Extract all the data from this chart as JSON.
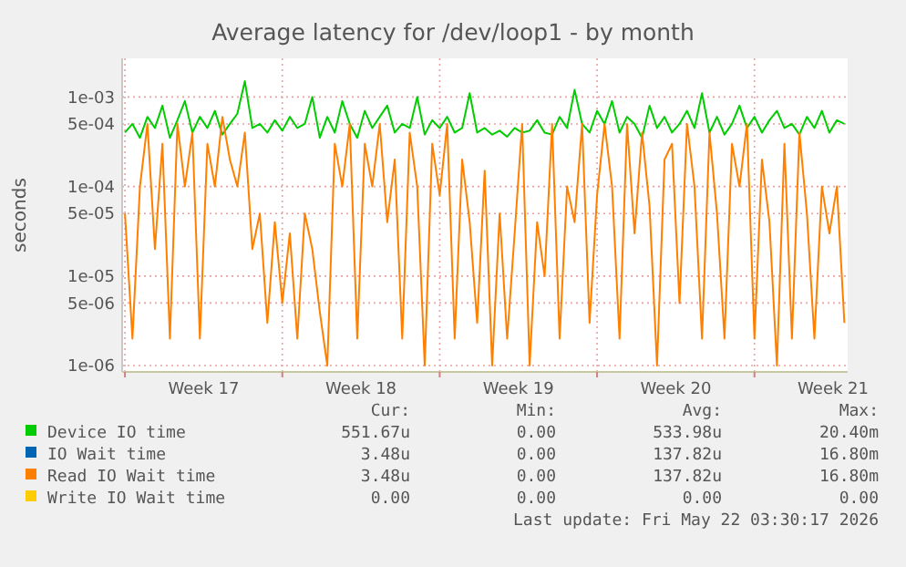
{
  "chart_data": {
    "type": "line",
    "title": "Average latency for /dev/loop1 - by month",
    "ylabel": "seconds",
    "log": "y",
    "grid": true,
    "legend": "bottom",
    "line_style": "solid",
    "xlim": [
      "2026-04-19T21:00",
      "2026-05-22T03:30"
    ],
    "xticks": [
      {
        "value": "2026-04-20T00:00",
        "label": null
      },
      {
        "value": "2026-04-23T12:00",
        "label": "Week 17"
      },
      {
        "value": "2026-04-27T00:00",
        "label": null
      },
      {
        "value": "2026-04-30T12:00",
        "label": "Week 18"
      },
      {
        "value": "2026-05-04T00:00",
        "label": null
      },
      {
        "value": "2026-05-07T12:00",
        "label": "Week 19"
      },
      {
        "value": "2026-05-11T00:00",
        "label": null
      },
      {
        "value": "2026-05-14T12:00",
        "label": "Week 20"
      },
      {
        "value": "2026-05-18T00:00",
        "label": null
      },
      {
        "value": "2026-05-21T12:00",
        "label": "Week 21"
      }
    ],
    "ylim": [
      8.5e-07,
      0.0027
    ],
    "yticks": [
      {
        "value": 1e-06,
        "label": "1e-06"
      },
      {
        "value": 5e-06,
        "label": "5e-06"
      },
      {
        "value": 1e-05,
        "label": "1e-05"
      },
      {
        "value": 5e-05,
        "label": "5e-05"
      },
      {
        "value": 0.0001,
        "label": "1e-04"
      },
      {
        "value": 0.0005,
        "label": "5e-04"
      },
      {
        "value": 0.001,
        "label": "1e-03"
      }
    ],
    "x": [
      "2026-04-20T00:00",
      "2026-04-20T08:00",
      "2026-04-20T16:00",
      "2026-04-21T00:00",
      "2026-04-21T08:00",
      "2026-04-21T16:00",
      "2026-04-22T00:00",
      "2026-04-22T08:00",
      "2026-04-22T16:00",
      "2026-04-23T00:00",
      "2026-04-23T08:00",
      "2026-04-23T16:00",
      "2026-04-24T00:00",
      "2026-04-24T08:00",
      "2026-04-24T16:00",
      "2026-04-25T00:00",
      "2026-04-25T08:00",
      "2026-04-25T16:00",
      "2026-04-26T00:00",
      "2026-04-26T08:00",
      "2026-04-26T16:00",
      "2026-04-27T00:00",
      "2026-04-27T08:00",
      "2026-04-27T16:00",
      "2026-04-28T00:00",
      "2026-04-28T08:00",
      "2026-04-28T16:00",
      "2026-04-29T00:00",
      "2026-04-29T08:00",
      "2026-04-29T16:00",
      "2026-04-30T00:00",
      "2026-04-30T08:00",
      "2026-04-30T16:00",
      "2026-05-01T00:00",
      "2026-05-01T08:00",
      "2026-05-01T16:00",
      "2026-05-02T00:00",
      "2026-05-02T08:00",
      "2026-05-02T16:00",
      "2026-05-03T00:00",
      "2026-05-03T08:00",
      "2026-05-03T16:00",
      "2026-05-04T00:00",
      "2026-05-04T08:00",
      "2026-05-04T16:00",
      "2026-05-05T00:00",
      "2026-05-05T08:00",
      "2026-05-05T16:00",
      "2026-05-06T00:00",
      "2026-05-06T08:00",
      "2026-05-06T16:00",
      "2026-05-07T00:00",
      "2026-05-07T08:00",
      "2026-05-07T16:00",
      "2026-05-08T00:00",
      "2026-05-08T08:00",
      "2026-05-08T16:00",
      "2026-05-09T00:00",
      "2026-05-09T08:00",
      "2026-05-09T16:00",
      "2026-05-10T00:00",
      "2026-05-10T08:00",
      "2026-05-10T16:00",
      "2026-05-11T00:00",
      "2026-05-11T08:00",
      "2026-05-11T16:00",
      "2026-05-12T00:00",
      "2026-05-12T08:00",
      "2026-05-12T16:00",
      "2026-05-13T00:00",
      "2026-05-13T08:00",
      "2026-05-13T16:00",
      "2026-05-14T00:00",
      "2026-05-14T08:00",
      "2026-05-14T16:00",
      "2026-05-15T00:00",
      "2026-05-15T08:00",
      "2026-05-15T16:00",
      "2026-05-16T00:00",
      "2026-05-16T08:00",
      "2026-05-16T16:00",
      "2026-05-17T00:00",
      "2026-05-17T08:00",
      "2026-05-17T16:00",
      "2026-05-18T00:00",
      "2026-05-18T08:00",
      "2026-05-18T16:00",
      "2026-05-19T00:00",
      "2026-05-19T08:00",
      "2026-05-19T16:00",
      "2026-05-20T00:00",
      "2026-05-20T08:00",
      "2026-05-20T16:00",
      "2026-05-21T00:00",
      "2026-05-21T08:00",
      "2026-05-21T16:00",
      "2026-05-22T00:00"
    ],
    "series": [
      {
        "name": "Device IO time",
        "color": "#00cc00",
        "values": [
          0.0004,
          0.0005,
          0.00035,
          0.0006,
          0.00045,
          0.0008,
          0.00035,
          0.00055,
          0.0009,
          0.0004,
          0.0006,
          0.00045,
          0.0007,
          0.00038,
          0.0005,
          0.00065,
          0.0015,
          0.00045,
          0.0005,
          0.0004,
          0.00055,
          0.00042,
          0.0006,
          0.00045,
          0.0005,
          0.001,
          0.00035,
          0.0006,
          0.0004,
          0.0009,
          0.0005,
          0.00035,
          0.0007,
          0.00045,
          0.0006,
          0.0008,
          0.0004,
          0.0005,
          0.00045,
          0.001,
          0.00038,
          0.00055,
          0.00045,
          0.0006,
          0.0004,
          0.00045,
          0.0011,
          0.0004,
          0.00045,
          0.00038,
          0.00042,
          0.00036,
          0.00045,
          0.0004,
          0.00042,
          0.00055,
          0.0004,
          0.00038,
          0.0006,
          0.00045,
          0.0012,
          0.0005,
          0.0004,
          0.0007,
          0.0005,
          0.0009,
          0.0004,
          0.0006,
          0.0005,
          0.00035,
          0.0008,
          0.00045,
          0.0006,
          0.0004,
          0.0005,
          0.0007,
          0.00045,
          0.0011,
          0.0004,
          0.0006,
          0.00038,
          0.0005,
          0.0008,
          0.00045,
          0.0006,
          0.0004,
          0.00055,
          0.0007,
          0.00045,
          0.0005,
          0.00038,
          0.0006,
          0.00045,
          0.0007,
          0.0004,
          0.00055,
          0.0005
        ]
      },
      {
        "name": "IO Wait time",
        "color": "#0066b3",
        "values": [
          null,
          null,
          null,
          null,
          null,
          null,
          null,
          null,
          null,
          null,
          null,
          null,
          null,
          null,
          null,
          null,
          null,
          null,
          null,
          null,
          null,
          null,
          null,
          null,
          null,
          null,
          null,
          null,
          null,
          null,
          null,
          null,
          null,
          null,
          null,
          null,
          null,
          null,
          null,
          null,
          null,
          null,
          null,
          null,
          null,
          null,
          null,
          null,
          null,
          null,
          null,
          null,
          null,
          null,
          null,
          null,
          null,
          null,
          null,
          null,
          null,
          null,
          null,
          null,
          null,
          null,
          null,
          null,
          null,
          null,
          null,
          null,
          null,
          null,
          null,
          null,
          null,
          null,
          null,
          null,
          null,
          null,
          null,
          null,
          null,
          null,
          null,
          null,
          null,
          null,
          null,
          null,
          null,
          null,
          null,
          null,
          null
        ]
      },
      {
        "name": "Read IO Wait time",
        "color": "#ff8000",
        "values": [
          5e-05,
          2e-06,
          0.0001,
          0.0005,
          2e-05,
          0.0003,
          2e-06,
          0.0005,
          0.0001,
          0.0004,
          2e-06,
          0.0003,
          0.0001,
          0.0006,
          0.0002,
          0.0001,
          0.0004,
          2e-05,
          5e-05,
          3e-06,
          4e-05,
          5e-06,
          3e-05,
          2e-06,
          5e-05,
          2e-05,
          4e-06,
          1e-06,
          0.0003,
          0.0001,
          0.0005,
          2e-06,
          0.0003,
          0.0001,
          0.0005,
          4e-05,
          0.0002,
          2e-06,
          0.0004,
          0.0001,
          1e-06,
          0.0003,
          8e-05,
          0.0005,
          2e-06,
          0.0002,
          4e-05,
          3e-06,
          0.00015,
          1e-06,
          5e-05,
          2e-06,
          3e-05,
          0.0005,
          1e-06,
          4e-05,
          1e-05,
          0.0005,
          2e-06,
          0.0001,
          4e-05,
          0.0005,
          3e-06,
          8e-05,
          0.0005,
          0.0001,
          2e-06,
          0.0005,
          3e-05,
          0.0004,
          6e-05,
          1e-06,
          0.0002,
          0.0003,
          5e-06,
          0.0005,
          0.0001,
          2e-06,
          0.0004,
          5e-05,
          2e-06,
          0.0003,
          0.0001,
          0.0005,
          2e-06,
          0.0002,
          4e-05,
          1e-06,
          0.0003,
          2e-06,
          0.0004,
          5e-05,
          2e-06,
          0.0001,
          3e-05,
          0.0001,
          3e-06
        ]
      },
      {
        "name": "Write IO Wait time",
        "color": "#ffcc00",
        "values": [
          null,
          null,
          null,
          null,
          null,
          null,
          null,
          null,
          null,
          null,
          null,
          null,
          null,
          null,
          null,
          null,
          null,
          null,
          null,
          null,
          null,
          null,
          null,
          null,
          null,
          null,
          null,
          null,
          null,
          null,
          null,
          null,
          null,
          null,
          null,
          null,
          null,
          null,
          null,
          null,
          null,
          null,
          null,
          null,
          null,
          null,
          null,
          null,
          null,
          null,
          null,
          null,
          null,
          null,
          null,
          null,
          null,
          null,
          null,
          null,
          null,
          null,
          null,
          null,
          null,
          null,
          null,
          null,
          null,
          null,
          null,
          null,
          null,
          null,
          null,
          null,
          null,
          null,
          null,
          null,
          null,
          null,
          null,
          null,
          null,
          null,
          null,
          null,
          null,
          null,
          null,
          null,
          null,
          null,
          null,
          null,
          null
        ]
      }
    ],
    "annotations": [
      "Cur:",
      "Min:",
      "Avg:",
      "Max:",
      "551.67u",
      "0.00",
      "533.98u",
      "20.40m",
      "3.48u",
      "0.00",
      "137.82u",
      "16.80m",
      "3.48u",
      "0.00",
      "137.82u",
      "16.80m",
      "0.00",
      "0.00",
      "0.00",
      "0.00",
      "Last update: Fri May 22 03:30:17 2026"
    ]
  }
}
